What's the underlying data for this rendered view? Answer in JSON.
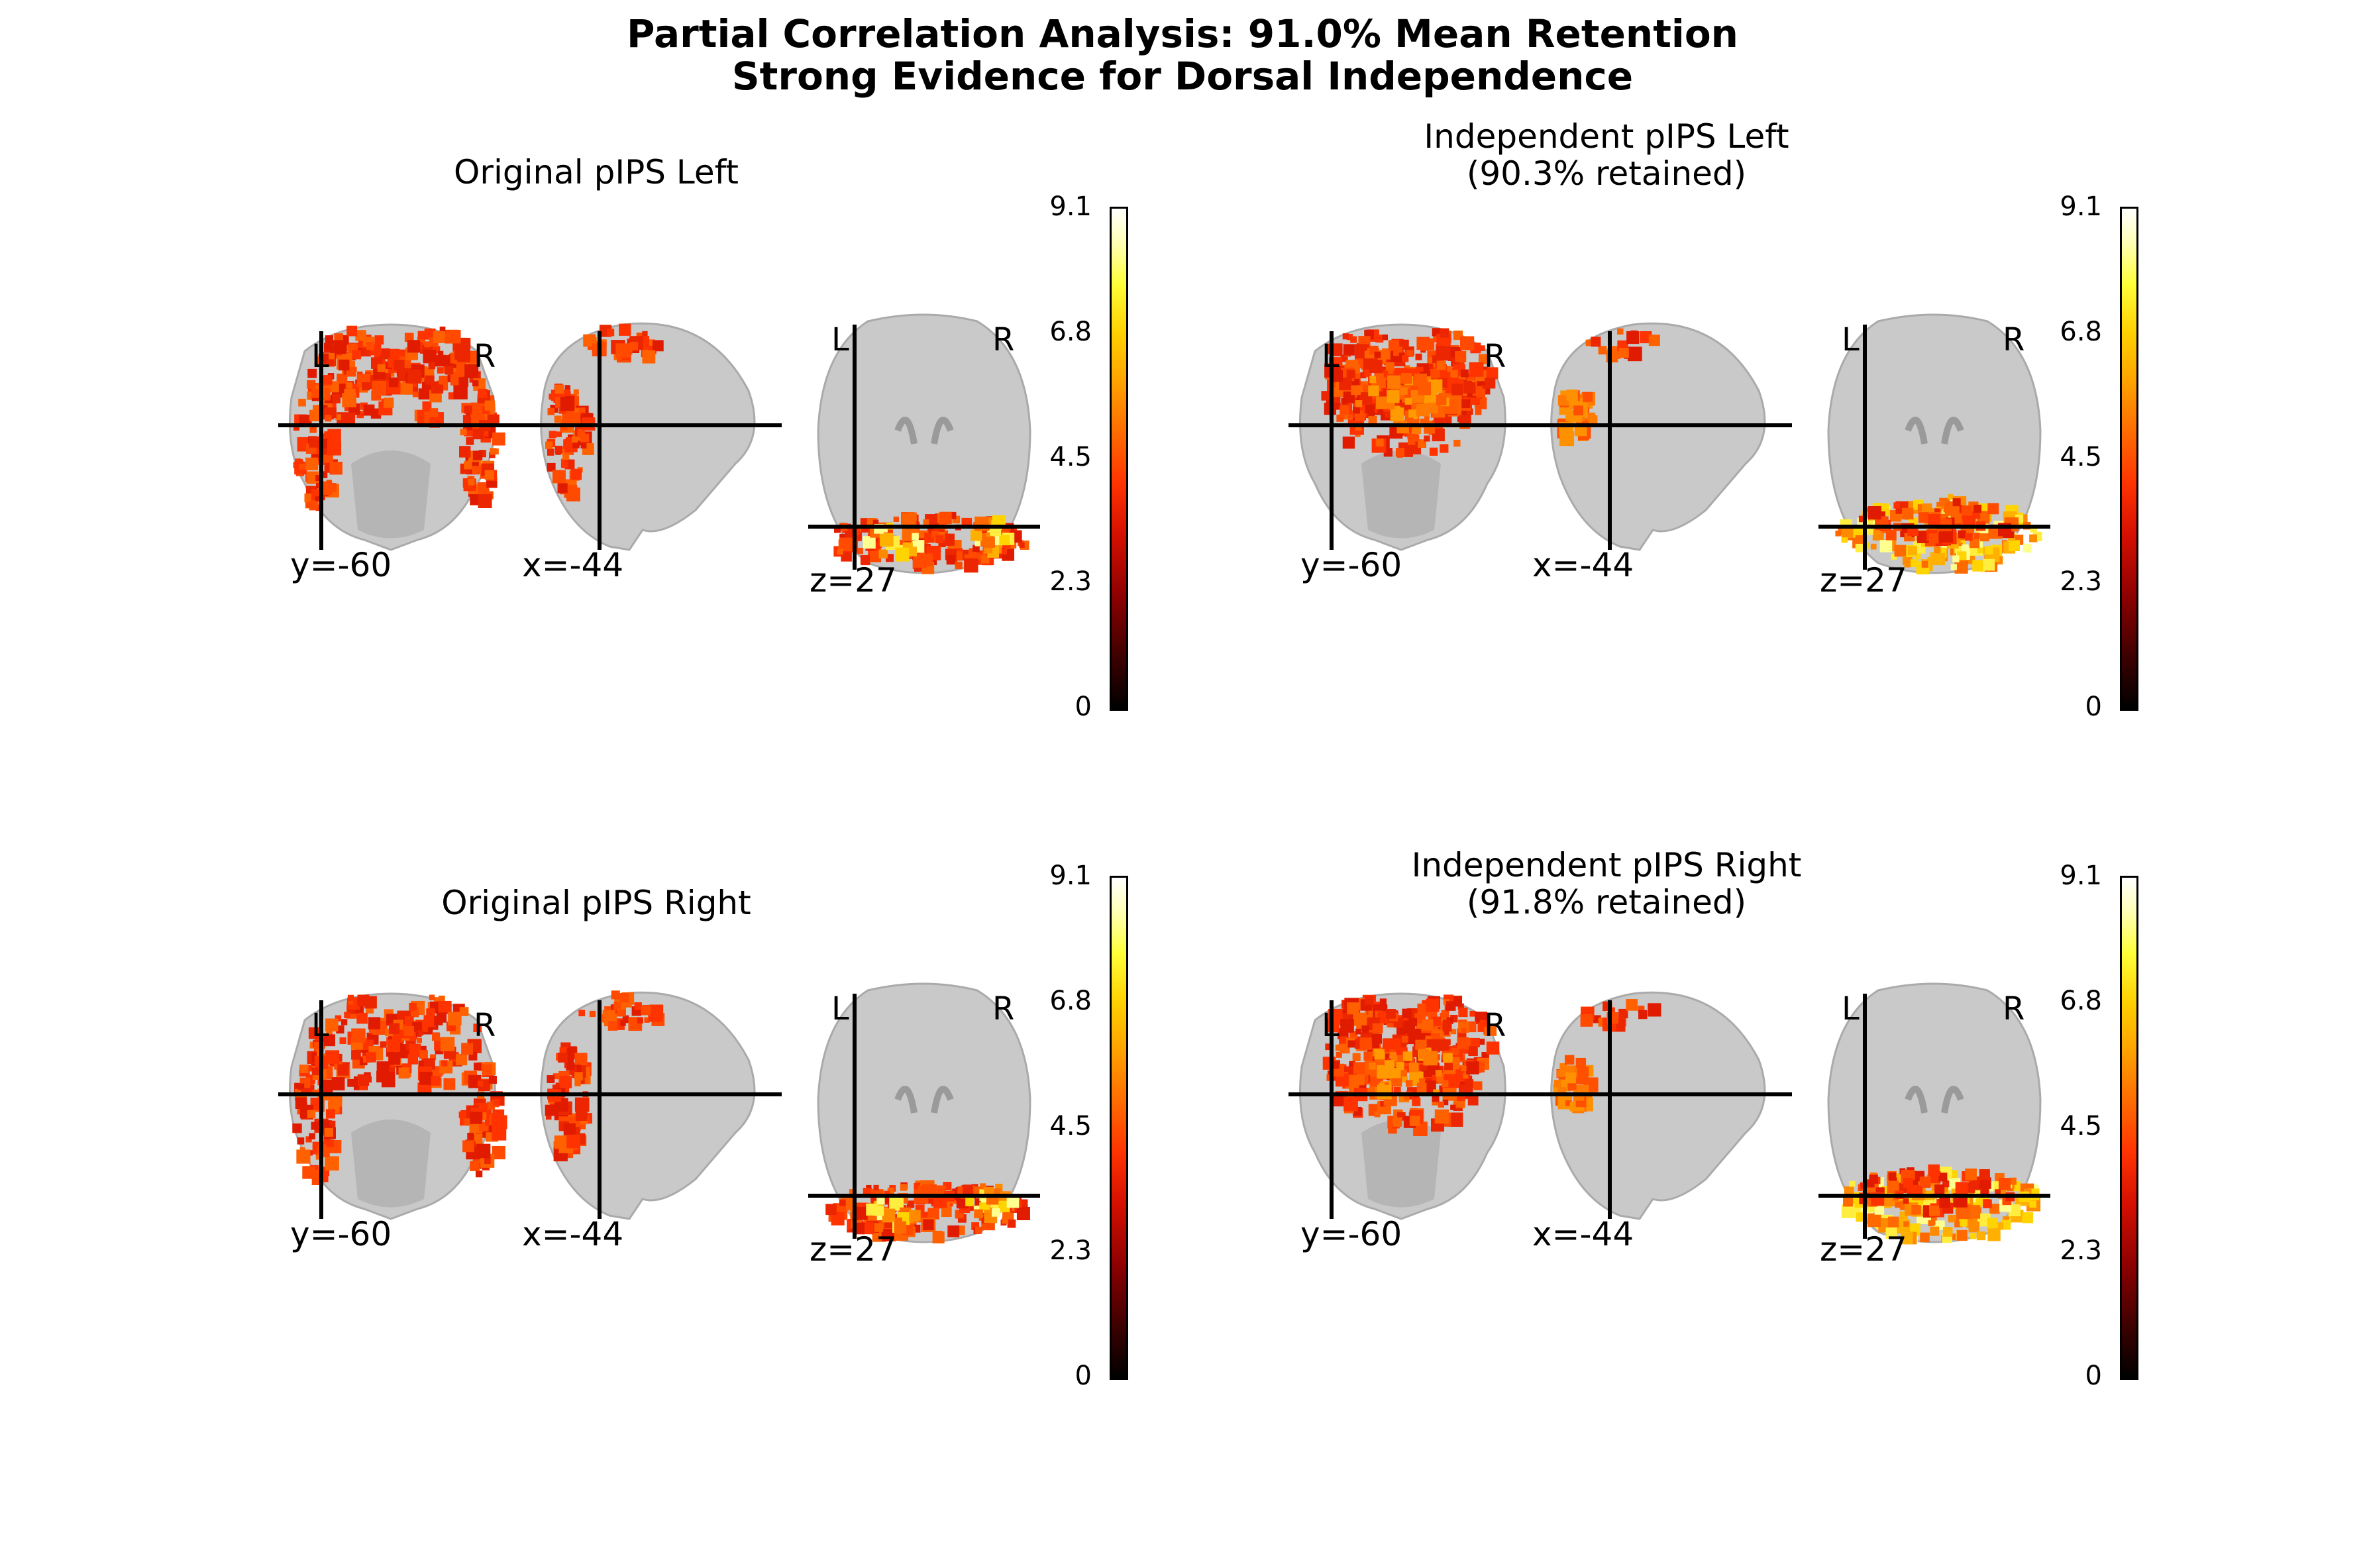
{
  "title": {
    "line1": "Partial Correlation Analysis: 91.0% Mean Retention",
    "line2": "Strong Evidence for Dorsal Independence"
  },
  "panels": [
    {
      "title1": "Original pIPS Left",
      "title2": "",
      "coronal": "y=-60",
      "sagittal": "x=-44",
      "axial": "z=27"
    },
    {
      "title1": "Independent pIPS Left",
      "title2": "(90.3% retained)",
      "coronal": "y=-60",
      "sagittal": "x=-44",
      "axial": "z=27"
    },
    {
      "title1": "Original pIPS Right",
      "title2": "",
      "coronal": "y=-60",
      "sagittal": "x=-44",
      "axial": "z=27"
    },
    {
      "title1": "Independent pIPS Right",
      "title2": "(91.8% retained)",
      "coronal": "y=-60",
      "sagittal": "x=-44",
      "axial": "z=27"
    }
  ],
  "orientation": {
    "left": "L",
    "right": "R"
  },
  "colorbar": {
    "ticks": [
      "9.1",
      "6.8",
      "4.5",
      "2.3",
      "0"
    ],
    "colormap": "cold_hot",
    "min": 0,
    "max": 9.1
  },
  "colors": {
    "activation_low": "#d61000",
    "activation_high": "#ffff80",
    "brain": "#c9c9c9",
    "crosshair": "#000000"
  }
}
